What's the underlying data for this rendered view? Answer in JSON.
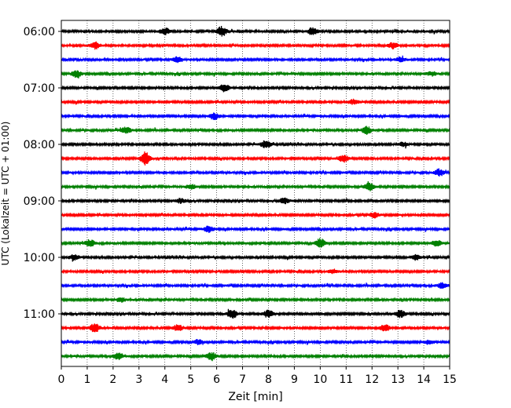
{
  "chart_data": {
    "type": "line",
    "title": "",
    "xlabel": "Zeit  [min]",
    "ylabel": "UTC (Lokalzeit = UTC + 01:00)",
    "x_ticks": [
      "0",
      "1",
      "2",
      "3",
      "4",
      "5",
      "6",
      "7",
      "8",
      "9",
      "10",
      "11",
      "12",
      "13",
      "14",
      "15"
    ],
    "xlim": [
      0,
      15
    ],
    "y_ticks": [
      {
        "label": "06:00",
        "row": 0
      },
      {
        "label": "07:00",
        "row": 4
      },
      {
        "label": "08:00",
        "row": 8
      },
      {
        "label": "09:00",
        "row": 12
      },
      {
        "label": "10:00",
        "row": 16
      },
      {
        "label": "11:00",
        "row": 20
      }
    ],
    "grid": "vertical dotted lines at every minute",
    "trace_interval_minutes": 15,
    "trace_start_times": [
      "06:00",
      "06:15",
      "06:30",
      "06:45",
      "07:00",
      "07:15",
      "07:30",
      "07:45",
      "08:00",
      "08:15",
      "08:30",
      "08:45",
      "09:00",
      "09:15",
      "09:30",
      "09:45",
      "10:00",
      "10:15",
      "10:30",
      "10:45",
      "11:00",
      "11:15",
      "11:30",
      "11:45"
    ],
    "colors": [
      "#000000",
      "#ff0000",
      "#0000ff",
      "#008000"
    ],
    "events": [
      {
        "row": 0,
        "x": 6.2,
        "amp": 1.2
      },
      {
        "row": 0,
        "x": 4.0,
        "amp": 0.8
      },
      {
        "row": 0,
        "x": 9.7,
        "amp": 0.9
      },
      {
        "row": 1,
        "x": 1.3,
        "amp": 0.8
      },
      {
        "row": 1,
        "x": 12.8,
        "amp": 0.7
      },
      {
        "row": 2,
        "x": 4.5,
        "amp": 0.7
      },
      {
        "row": 2,
        "x": 13.1,
        "amp": 0.6
      },
      {
        "row": 3,
        "x": 0.6,
        "amp": 0.8
      },
      {
        "row": 3,
        "x": 14.3,
        "amp": 0.5
      },
      {
        "row": 4,
        "x": 6.3,
        "amp": 0.9
      },
      {
        "row": 5,
        "x": 11.3,
        "amp": 0.6
      },
      {
        "row": 6,
        "x": 5.9,
        "amp": 0.8
      },
      {
        "row": 7,
        "x": 2.5,
        "amp": 0.8
      },
      {
        "row": 7,
        "x": 11.8,
        "amp": 0.9
      },
      {
        "row": 8,
        "x": 7.9,
        "amp": 0.9
      },
      {
        "row": 8,
        "x": 13.2,
        "amp": 0.5
      },
      {
        "row": 9,
        "x": 3.25,
        "amp": 1.6
      },
      {
        "row": 9,
        "x": 10.9,
        "amp": 0.9
      },
      {
        "row": 10,
        "x": 14.6,
        "amp": 0.8
      },
      {
        "row": 11,
        "x": 11.9,
        "amp": 1.0
      },
      {
        "row": 11,
        "x": 5.0,
        "amp": 0.6
      },
      {
        "row": 12,
        "x": 8.6,
        "amp": 0.7
      },
      {
        "row": 12,
        "x": 4.6,
        "amp": 0.5
      },
      {
        "row": 13,
        "x": 12.1,
        "amp": 0.6
      },
      {
        "row": 14,
        "x": 5.7,
        "amp": 0.7
      },
      {
        "row": 15,
        "x": 1.1,
        "amp": 0.9
      },
      {
        "row": 15,
        "x": 10.0,
        "amp": 1.1
      },
      {
        "row": 15,
        "x": 14.5,
        "amp": 0.7
      },
      {
        "row": 16,
        "x": 0.5,
        "amp": 0.6
      },
      {
        "row": 16,
        "x": 13.7,
        "amp": 0.6
      },
      {
        "row": 17,
        "x": 10.5,
        "amp": 0.5
      },
      {
        "row": 18,
        "x": 14.7,
        "amp": 0.6
      },
      {
        "row": 19,
        "x": 2.3,
        "amp": 0.5
      },
      {
        "row": 20,
        "x": 6.6,
        "amp": 1.1
      },
      {
        "row": 20,
        "x": 8.0,
        "amp": 0.9
      },
      {
        "row": 20,
        "x": 13.1,
        "amp": 0.9
      },
      {
        "row": 21,
        "x": 1.3,
        "amp": 1.1
      },
      {
        "row": 21,
        "x": 4.5,
        "amp": 0.8
      },
      {
        "row": 21,
        "x": 12.5,
        "amp": 0.8
      },
      {
        "row": 22,
        "x": 5.3,
        "amp": 0.6
      },
      {
        "row": 22,
        "x": 14.2,
        "amp": 0.5
      },
      {
        "row": 23,
        "x": 2.2,
        "amp": 0.8
      },
      {
        "row": 23,
        "x": 5.8,
        "amp": 1.0
      }
    ]
  }
}
